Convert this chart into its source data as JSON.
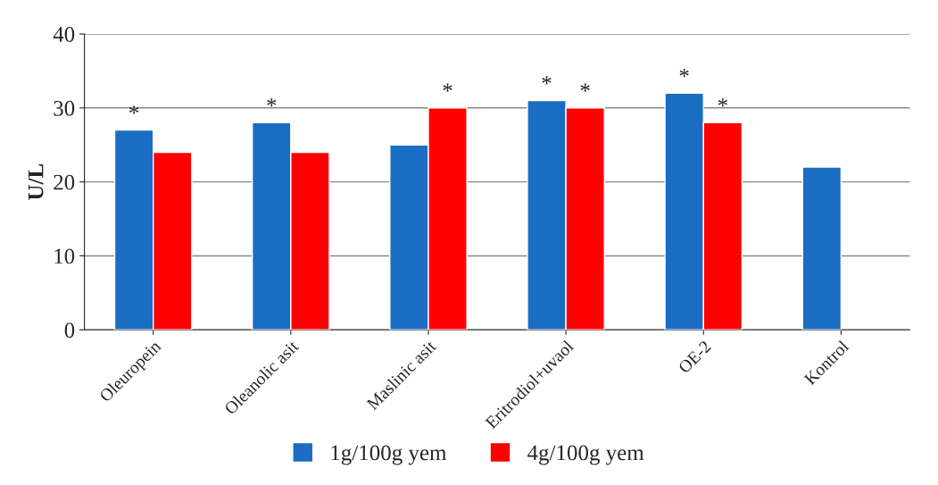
{
  "chart_data": {
    "type": "bar",
    "ylabel": "U/L",
    "categories": [
      "Oleuropein",
      "Oleanolic asit",
      "Maslinic asit",
      "Eritrodiol+uvaol",
      "OE-2",
      "Kontrol"
    ],
    "series": [
      {
        "name": "1g/100g yem",
        "color": "#1a6dc2",
        "values": [
          27,
          28,
          25,
          31,
          32,
          22
        ]
      },
      {
        "name": "4g/100g yem",
        "color": "#ff0000",
        "values": [
          24,
          24,
          30,
          30,
          28,
          null
        ]
      }
    ],
    "ylim": [
      0,
      40
    ],
    "yticks": [
      0,
      10,
      20,
      30,
      40
    ],
    "grid": "y",
    "legend": "bottom",
    "annotations": [
      {
        "text": "*",
        "x": "Oleuropein",
        "y": 27
      },
      {
        "text": "*",
        "x": "Oleanolic asit",
        "y": 28
      },
      {
        "text": "*",
        "x": "Maslinic asit",
        "y": 30
      },
      {
        "text": "*",
        "x": "Eritrodiol+uvaol",
        "y": 31
      },
      {
        "text": "*",
        "x": "Eritrodiol+uvaol",
        "y": 30
      },
      {
        "text": "*",
        "x": "OE-2",
        "y": 32
      },
      {
        "text": "*",
        "x": "OE-2",
        "y": 28
      }
    ]
  }
}
